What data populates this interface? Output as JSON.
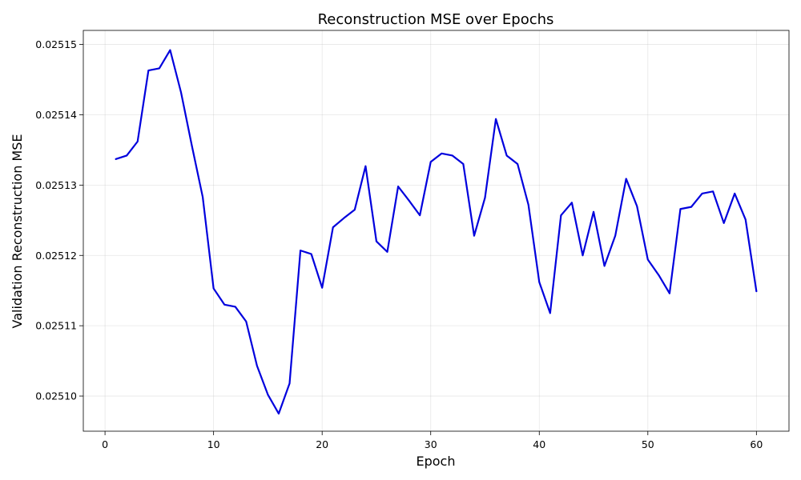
{
  "chart_data": {
    "type": "line",
    "title": "Reconstruction MSE over Epochs",
    "xlabel": "Epoch",
    "ylabel": "Validation Reconstruction MSE",
    "xlim": [
      -2,
      63
    ],
    "ylim": [
      0.025095,
      0.025152
    ],
    "xticks": [
      0,
      10,
      20,
      30,
      40,
      50,
      60
    ],
    "yticks": [
      0.0251,
      0.02511,
      0.02512,
      0.02513,
      0.02514,
      0.02515
    ],
    "ytick_labels": [
      "0.02510",
      "0.02511",
      "0.02512",
      "0.02513",
      "0.02514",
      "0.02515"
    ],
    "grid": true,
    "line_color": "#0000dd",
    "x": [
      1,
      2,
      3,
      4,
      5,
      6,
      7,
      8,
      9,
      10,
      11,
      12,
      13,
      14,
      15,
      16,
      17,
      18,
      19,
      20,
      21,
      22,
      23,
      24,
      25,
      26,
      27,
      28,
      29,
      30,
      31,
      32,
      33,
      34,
      35,
      36,
      37,
      38,
      39,
      40,
      41,
      42,
      43,
      44,
      45,
      46,
      47,
      48,
      49,
      50,
      51,
      52,
      53,
      54,
      55,
      56,
      57,
      58,
      59,
      60
    ],
    "y": [
      0.0251337,
      0.0251342,
      0.0251362,
      0.0251463,
      0.0251466,
      0.0251492,
      0.0251432,
      0.0251356,
      0.0251283,
      0.0251153,
      0.025113,
      0.0251127,
      0.0251106,
      0.0251043,
      0.0251002,
      0.0250975,
      0.0251018,
      0.0251207,
      0.0251202,
      0.0251154,
      0.025124,
      0.0251253,
      0.0251265,
      0.0251327,
      0.025122,
      0.0251205,
      0.0251298,
      0.0251278,
      0.0251257,
      0.0251333,
      0.0251345,
      0.0251342,
      0.025133,
      0.0251228,
      0.0251282,
      0.0251394,
      0.0251342,
      0.025133,
      0.0251272,
      0.0251162,
      0.0251118,
      0.0251257,
      0.0251275,
      0.02512,
      0.0251262,
      0.0251185,
      0.0251228,
      0.0251309,
      0.025127,
      0.0251194,
      0.0251172,
      0.0251146,
      0.0251266,
      0.0251269,
      0.0251288,
      0.0251291,
      0.0251246,
      0.0251288,
      0.0251251,
      0.0251149
    ]
  }
}
